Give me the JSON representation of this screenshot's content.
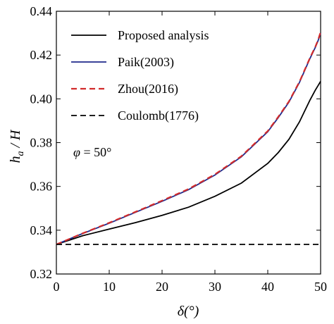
{
  "chart_data": {
    "type": "line",
    "title": "",
    "xlabel": "δ(°)",
    "ylabel": {
      "main": "h",
      "sub": "a",
      "rest": " / H"
    },
    "xlim": [
      0,
      50
    ],
    "ylim": [
      0.32,
      0.44
    ],
    "xticks": [
      0,
      10,
      20,
      30,
      40,
      50
    ],
    "yticks": [
      0.32,
      0.34,
      0.36,
      0.38,
      0.4,
      0.42,
      0.44
    ],
    "xtick_labels": [
      "0",
      "10",
      "20",
      "30",
      "40",
      "50"
    ],
    "ytick_labels": [
      "0.32",
      "0.34",
      "0.36",
      "0.38",
      "0.40",
      "0.42",
      "0.44"
    ],
    "grid": false,
    "legend_position": "top-left",
    "annotation": {
      "var": "φ",
      "text": " = 50°"
    },
    "series": [
      {
        "name": "Proposed analysis",
        "color": "#000000",
        "dash": "solid",
        "x": [
          0,
          5,
          10,
          15,
          20,
          25,
          30,
          35,
          40,
          42,
          44,
          46,
          47,
          48,
          49,
          49.5,
          50
        ],
        "y": [
          0.3335,
          0.3375,
          0.3405,
          0.3435,
          0.3468,
          0.3505,
          0.3555,
          0.3615,
          0.3705,
          0.3755,
          0.3815,
          0.3895,
          0.3945,
          0.3995,
          0.404,
          0.406,
          0.408
        ]
      },
      {
        "name": "Paik(2003)",
        "color": "#1f2a8c",
        "dash": "solid",
        "x": [
          0,
          5,
          10,
          15,
          20,
          25,
          30,
          35,
          40,
          42,
          44,
          46,
          47,
          48,
          49,
          49.5,
          50
        ],
        "y": [
          0.3335,
          0.3385,
          0.3432,
          0.3482,
          0.3532,
          0.3585,
          0.3652,
          0.3735,
          0.385,
          0.3915,
          0.3985,
          0.4075,
          0.413,
          0.4185,
          0.4235,
          0.4265,
          0.43
        ]
      },
      {
        "name": "Zhou(2016)",
        "color": "#d22b2b",
        "dash": "dashed",
        "x": [
          0,
          5,
          10,
          15,
          20,
          25,
          30,
          35,
          40,
          42,
          44,
          46,
          47,
          48,
          49,
          49.5,
          50
        ],
        "y": [
          0.3335,
          0.3386,
          0.3434,
          0.3484,
          0.3535,
          0.3588,
          0.3655,
          0.3738,
          0.3853,
          0.3918,
          0.3988,
          0.4078,
          0.4133,
          0.4188,
          0.4238,
          0.4268,
          0.4305
        ]
      },
      {
        "name": "Coulomb(1776)",
        "color": "#000000",
        "dash": "dashed",
        "x": [
          0,
          50
        ],
        "y": [
          0.3335,
          0.3335
        ]
      }
    ]
  }
}
